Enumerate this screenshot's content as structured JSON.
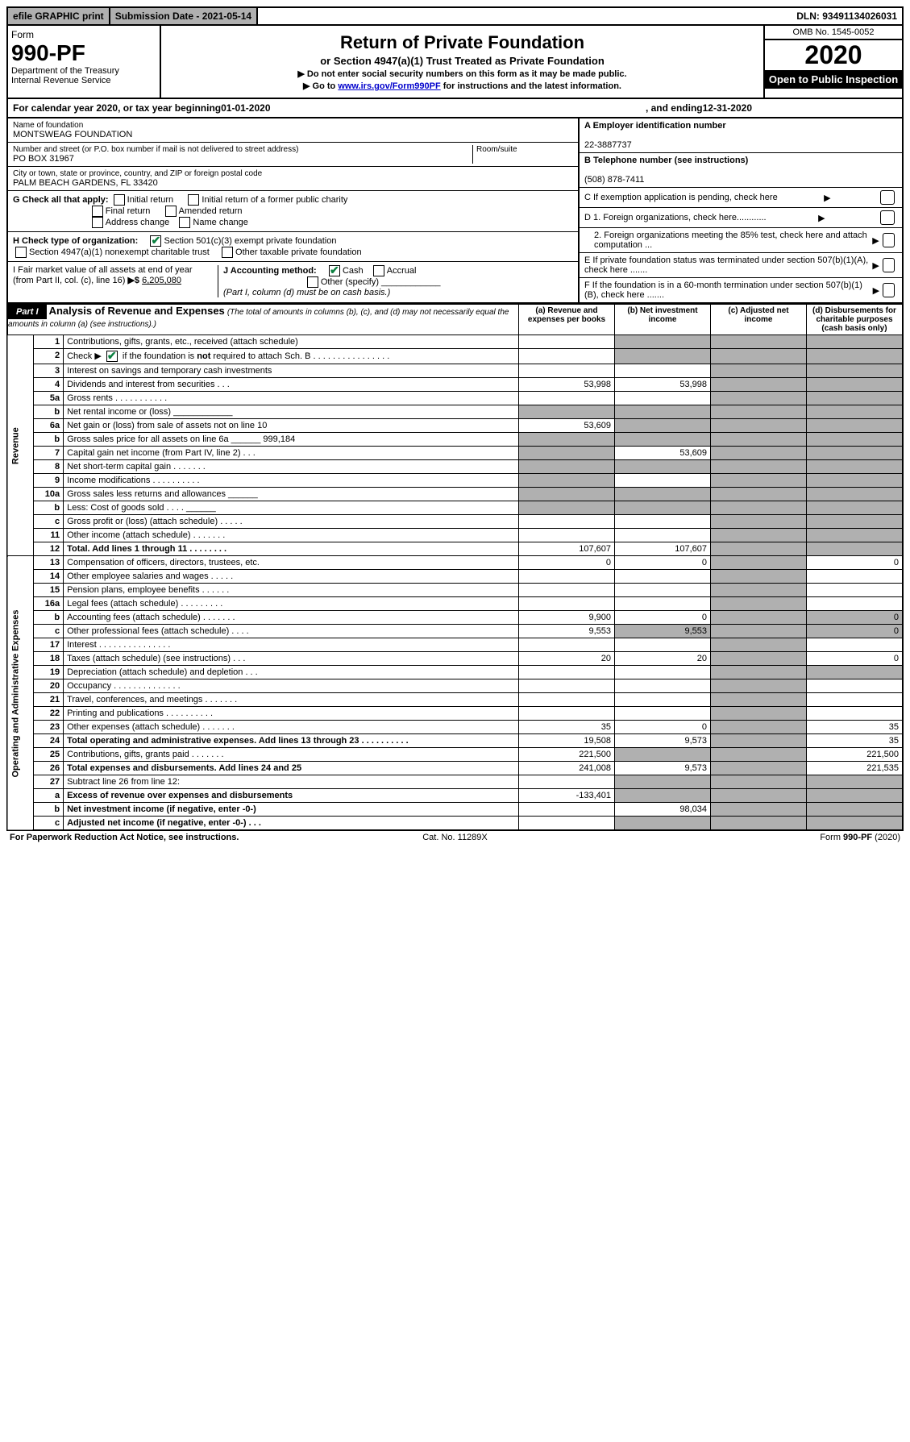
{
  "top": {
    "efile": "efile GRAPHIC print",
    "submission": "Submission Date - 2021-05-14",
    "dln": "DLN: 93491134026031"
  },
  "header": {
    "form_label": "Form",
    "form_no": "990-PF",
    "dept": "Department of the Treasury",
    "irs": "Internal Revenue Service",
    "title": "Return of Private Foundation",
    "subtitle": "or Section 4947(a)(1) Trust Treated as Private Foundation",
    "note1": "▶ Do not enter social security numbers on this form as it may be made public.",
    "note2_pre": "▶ Go to ",
    "note2_link": "www.irs.gov/Form990PF",
    "note2_post": " for instructions and the latest information.",
    "omb": "OMB No. 1545-0052",
    "year": "2020",
    "inspection": "Open to Public Inspection"
  },
  "cal": {
    "text_pre": "For calendar year 2020, or tax year beginning ",
    "begin": "01-01-2020",
    "mid": " , and ending ",
    "end": "12-31-2020"
  },
  "info_left": {
    "name_label": "Name of foundation",
    "name": "MONTSWEAG FOUNDATION",
    "addr_label": "Number and street (or P.O. box number if mail is not delivered to street address)",
    "addr": "PO BOX 31967",
    "room_label": "Room/suite",
    "city_label": "City or town, state or province, country, and ZIP or foreign postal code",
    "city": "PALM BEACH GARDENS, FL  33420"
  },
  "info_right": {
    "a_label": "A Employer identification number",
    "a": "22-3887737",
    "b_label": "B Telephone number (see instructions)",
    "b": "(508) 878-7411",
    "c": "C If exemption application is pending, check here",
    "d1": "D 1. Foreign organizations, check here............",
    "d2": "2. Foreign organizations meeting the 85% test, check here and attach computation ...",
    "e": "E  If private foundation status was terminated under section 507(b)(1)(A), check here .......",
    "f": "F  If the foundation is in a 60-month termination under section 507(b)(1)(B), check here .......",
    "arrow": "▶"
  },
  "g": {
    "label": "G Check all that apply:",
    "opts": [
      "Initial return",
      "Initial return of a former public charity",
      "Final return",
      "Amended return",
      "Address change",
      "Name change"
    ]
  },
  "h": {
    "label": "H Check type of organization:",
    "o1": "Section 501(c)(3) exempt private foundation",
    "o2": "Section 4947(a)(1) nonexempt charitable trust",
    "o3": "Other taxable private foundation"
  },
  "i": {
    "label": "I Fair market value of all assets at end of year (from Part II, col. (c), line 16)",
    "arrow": "▶$",
    "value": "6,205,080"
  },
  "j": {
    "label": "J Accounting method:",
    "cash": "Cash",
    "accrual": "Accrual",
    "other": "Other (specify)",
    "note": "(Part I, column (d) must be on cash basis.)"
  },
  "part1": {
    "tag": "Part I",
    "title": "Analysis of Revenue and Expenses",
    "note": " (The total of amounts in columns (b), (c), and (d) may not necessarily equal the amounts in column (a) (see instructions).)",
    "cols": {
      "a": "(a)   Revenue and expenses per books",
      "b": "(b)  Net investment income",
      "c": "(c)  Adjusted net income",
      "d": "(d)  Disbursements for charitable purposes (cash basis only)"
    }
  },
  "side": {
    "rev": "Revenue",
    "exp": "Operating and Administrative Expenses"
  },
  "rows": [
    {
      "n": "1",
      "t": "Contributions, gifts, grants, etc., received (attach schedule)"
    },
    {
      "n": "2",
      "t": "Check ▶ [✔] if the foundation is not required to attach Sch. B"
    },
    {
      "n": "3",
      "t": "Interest on savings and temporary cash investments"
    },
    {
      "n": "4",
      "t": "Dividends and interest from securities   .  .  .",
      "a": "53,998",
      "b": "53,998"
    },
    {
      "n": "5a",
      "t": "Gross rents   .  .  .  .  .  .  .  .  .  .  ."
    },
    {
      "n": "b",
      "t": "Net rental income or (loss)  ____________"
    },
    {
      "n": "6a",
      "t": "Net gain or (loss) from sale of assets not on line 10",
      "a": "53,609"
    },
    {
      "n": "b",
      "t": "Gross sales price for all assets on line 6a ______   999,184"
    },
    {
      "n": "7",
      "t": "Capital gain net income (from Part IV, line 2)   .  .  .",
      "b": "53,609"
    },
    {
      "n": "8",
      "t": "Net short-term capital gain   .  .  .  .  .  .  ."
    },
    {
      "n": "9",
      "t": "Income modifications  .  .  .  .  .  .  .  .  .  ."
    },
    {
      "n": "10a",
      "t": "Gross sales less returns and allowances  ______"
    },
    {
      "n": "b",
      "t": "Less: Cost of goods sold     .  .  .  .   ______"
    },
    {
      "n": "c",
      "t": "Gross profit or (loss) (attach schedule)   .  .  .  .  ."
    },
    {
      "n": "11",
      "t": "Other income (attach schedule)    .  .  .  .  .  .  ."
    },
    {
      "n": "12",
      "t": "Total. Add lines 1 through 11    .  .  .  .  .  .  .  .",
      "bold": true,
      "a": "107,607",
      "b": "107,607"
    }
  ],
  "exp_rows": [
    {
      "n": "13",
      "t": "Compensation of officers, directors, trustees, etc.",
      "a": "0",
      "b": "0",
      "d": "0"
    },
    {
      "n": "14",
      "t": "Other employee salaries and wages    .  .  .  .  ."
    },
    {
      "n": "15",
      "t": "Pension plans, employee benefits   .  .  .  .  .  ."
    },
    {
      "n": "16a",
      "t": "Legal fees (attach schedule)  .  .  .  .  .  .  .  .  ."
    },
    {
      "n": "b",
      "t": "Accounting fees (attach schedule)  .  .  .  .  .  .  .",
      "a": "9,900",
      "b": "0",
      "d": "0"
    },
    {
      "n": "c",
      "t": "Other professional fees (attach schedule)    .  .  .  .",
      "a": "9,553",
      "b": "9,553",
      "d": "0"
    },
    {
      "n": "17",
      "t": "Interest   .  .  .  .  .  .  .  .  .  .  .  .  .  .  ."
    },
    {
      "n": "18",
      "t": "Taxes (attach schedule) (see instructions)    .  .  .",
      "a": "20",
      "b": "20",
      "d": "0"
    },
    {
      "n": "19",
      "t": "Depreciation (attach schedule) and depletion    .  .  ."
    },
    {
      "n": "20",
      "t": "Occupancy  .  .  .  .  .  .  .  .  .  .  .  .  .  ."
    },
    {
      "n": "21",
      "t": "Travel, conferences, and meetings  .  .  .  .  .  .  ."
    },
    {
      "n": "22",
      "t": "Printing and publications  .  .  .  .  .  .  .  .  .  ."
    },
    {
      "n": "23",
      "t": "Other expenses (attach schedule)  .  .  .  .  .  .  .",
      "a": "35",
      "b": "0",
      "d": "35"
    },
    {
      "n": "24",
      "t": "Total operating and administrative expenses. Add lines 13 through 23   .  .  .  .  .  .  .  .  .  .",
      "bold": true,
      "a": "19,508",
      "b": "9,573",
      "d": "35"
    },
    {
      "n": "25",
      "t": "Contributions, gifts, grants paid     .  .  .  .  .  .  .",
      "a": "221,500",
      "d": "221,500"
    },
    {
      "n": "26",
      "t": "Total expenses and disbursements. Add lines 24 and 25",
      "bold": true,
      "a": "241,008",
      "b": "9,573",
      "d": "221,535"
    },
    {
      "n": "27",
      "t": "Subtract line 26 from line 12:"
    },
    {
      "n": "a",
      "t": "Excess of revenue over expenses and disbursements",
      "bold": true,
      "a": "-133,401"
    },
    {
      "n": "b",
      "t": "Net investment income (if negative, enter -0-)",
      "bold": true,
      "b": "98,034"
    },
    {
      "n": "c",
      "t": "Adjusted net income (if negative, enter -0-)   .  .  .",
      "bold": true
    }
  ],
  "footer": {
    "left": "For Paperwork Reduction Act Notice, see instructions.",
    "mid": "Cat. No. 11289X",
    "right": "Form 990-PF (2020)"
  }
}
